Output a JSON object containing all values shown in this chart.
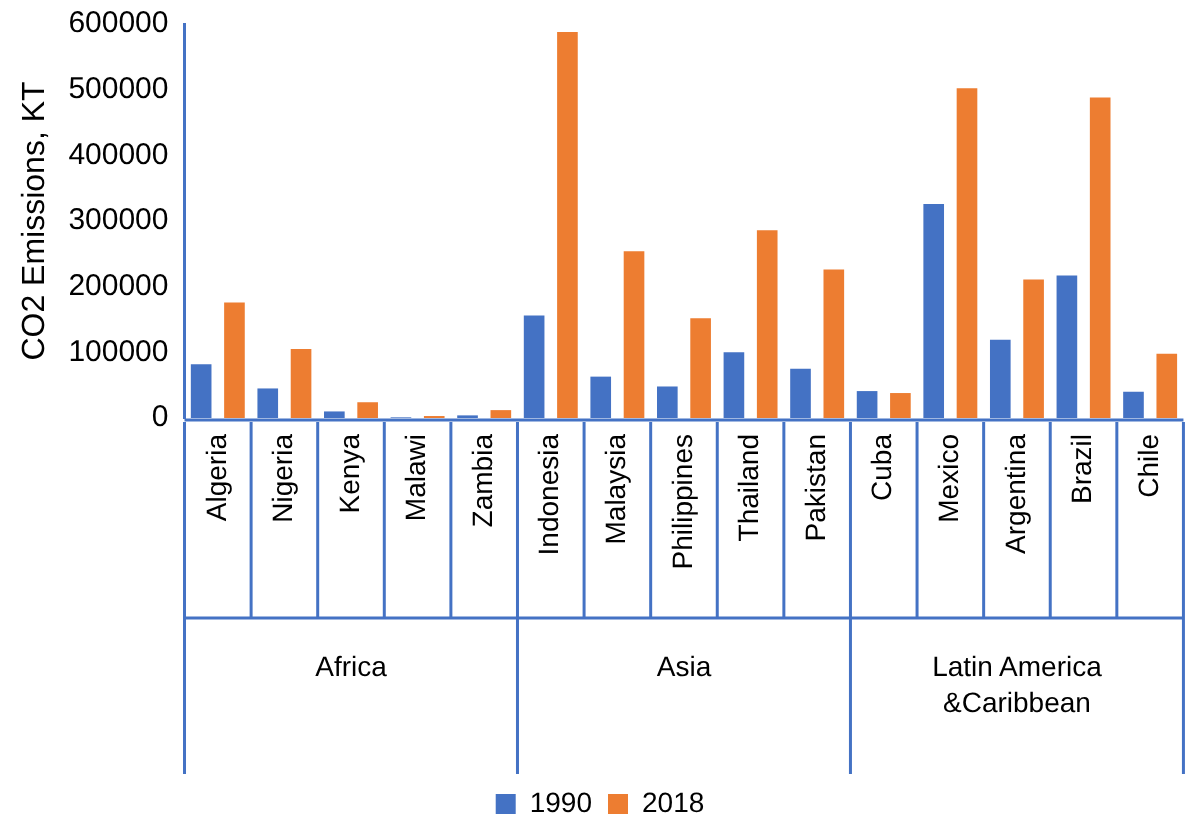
{
  "chart_data": {
    "type": "bar",
    "ylabel": "CO2 Emissions, KT",
    "categories": [
      "Algeria",
      "Nigeria",
      "Kenya",
      "Malawi",
      "Zambia",
      "Indonesia",
      "Malaysia",
      "Philippines",
      "Thailand",
      "Pakistan",
      "Cuba",
      "Mexico",
      "Argentina",
      "Brazil",
      "Chile"
    ],
    "series": [
      {
        "name": "1990",
        "color": "#4472c4",
        "values": [
          82000,
          45000,
          10000,
          1000,
          4000,
          156000,
          63000,
          48000,
          100000,
          75000,
          41000,
          326000,
          119000,
          217000,
          40000
        ]
      },
      {
        "name": "2018",
        "color": "#ed7d31",
        "values": [
          176000,
          105000,
          24000,
          3000,
          12000,
          588000,
          254000,
          152000,
          286000,
          226000,
          38000,
          502000,
          211000,
          488000,
          98000
        ]
      }
    ],
    "ylim": [
      0,
      600000
    ],
    "yticks": [
      0,
      100000,
      200000,
      300000,
      400000,
      500000,
      600000
    ],
    "grid": false,
    "legend": "bottom",
    "annotations": [
      "Africa",
      "Asia",
      "Latin America &Caribbean"
    ]
  }
}
